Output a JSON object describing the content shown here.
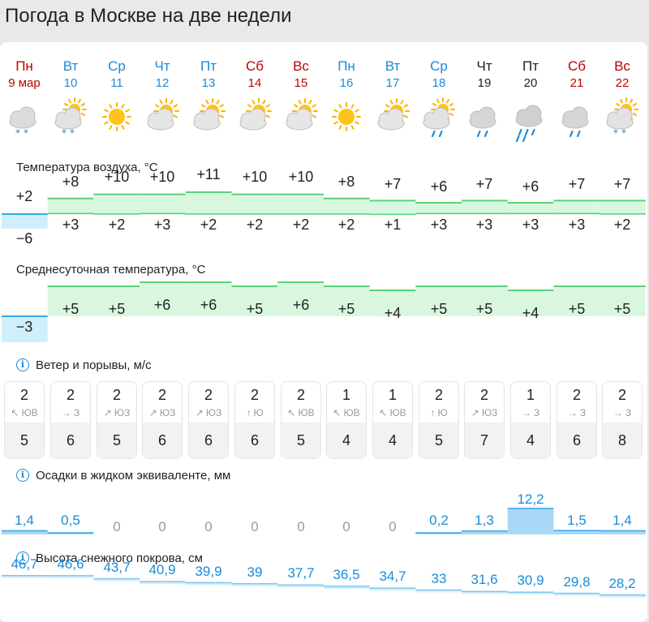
{
  "title": "Погода в Москве на две недели",
  "days": [
    {
      "dow": "Пн",
      "date": "9 мар",
      "color": "red",
      "icon": "snow-cloud-icon"
    },
    {
      "dow": "Вт",
      "date": "10",
      "color": "blue",
      "icon": "partly-cloudy-snow-icon"
    },
    {
      "dow": "Ср",
      "date": "11",
      "color": "blue",
      "icon": "sun-icon"
    },
    {
      "dow": "Чт",
      "date": "12",
      "color": "blue",
      "icon": "partly-cloudy-icon"
    },
    {
      "dow": "Пт",
      "date": "13",
      "color": "blue",
      "icon": "partly-cloudy-icon"
    },
    {
      "dow": "Сб",
      "date": "14",
      "color": "red",
      "icon": "partly-cloudy-icon"
    },
    {
      "dow": "Вс",
      "date": "15",
      "color": "red",
      "icon": "partly-cloudy-icon"
    },
    {
      "dow": "Пн",
      "date": "16",
      "color": "blue",
      "icon": "sun-icon"
    },
    {
      "dow": "Вт",
      "date": "17",
      "color": "blue",
      "icon": "partly-cloudy-icon"
    },
    {
      "dow": "Ср",
      "date": "18",
      "color": "blue",
      "icon": "partly-cloudy-rain-icon"
    },
    {
      "dow": "Чт",
      "date": "19",
      "color": "black",
      "icon": "rain-cloud-icon"
    },
    {
      "dow": "Пт",
      "date": "20",
      "color": "black",
      "icon": "heavy-rain-cloud-icon"
    },
    {
      "dow": "Сб",
      "date": "21",
      "color": "red",
      "icon": "rain-cloud-icon"
    },
    {
      "dow": "Вс",
      "date": "22",
      "color": "red",
      "icon": "partly-cloudy-snow-icon"
    }
  ],
  "temperature": {
    "title": "Температура воздуха, °C",
    "max": [
      "+2",
      "+8",
      "+10",
      "+10",
      "+11",
      "+10",
      "+10",
      "+8",
      "+7",
      "+6",
      "+7",
      "+6",
      "+7",
      "+7"
    ],
    "min": [
      "−6",
      "+3",
      "+2",
      "+3",
      "+2",
      "+2",
      "+2",
      "+2",
      "+1",
      "+3",
      "+3",
      "+3",
      "+3",
      "+2"
    ],
    "max_values": [
      2,
      8,
      10,
      10,
      11,
      10,
      10,
      8,
      7,
      6,
      7,
      6,
      7,
      7
    ],
    "min_values": [
      -6,
      3,
      2,
      3,
      2,
      2,
      2,
      2,
      1,
      3,
      3,
      3,
      3,
      2
    ]
  },
  "average": {
    "title": "Среднесуточная температура, °C",
    "labels": [
      "−3",
      "+5",
      "+5",
      "+6",
      "+6",
      "+5",
      "+6",
      "+5",
      "+4",
      "+5",
      "+5",
      "+4",
      "+5",
      "+5"
    ],
    "values": [
      -3,
      5,
      5,
      6,
      6,
      5,
      6,
      5,
      4,
      5,
      5,
      4,
      5,
      5
    ]
  },
  "wind": {
    "title": "Ветер и порывы, м/с",
    "info_icon": "info-icon",
    "speed": [
      "2",
      "2",
      "2",
      "2",
      "2",
      "2",
      "2",
      "1",
      "1",
      "2",
      "2",
      "1",
      "2",
      "2"
    ],
    "dir_arrow": [
      "↖",
      "→",
      "↗",
      "↗",
      "↗",
      "↑",
      "↖",
      "↖",
      "↖",
      "↑",
      "↗",
      "→",
      "→",
      "→"
    ],
    "dir": [
      "ЮВ",
      "З",
      "ЮЗ",
      "ЮЗ",
      "ЮЗ",
      "Ю",
      "ЮВ",
      "ЮВ",
      "ЮВ",
      "Ю",
      "ЮЗ",
      "З",
      "З",
      "З"
    ],
    "gust": [
      "5",
      "6",
      "5",
      "6",
      "6",
      "6",
      "5",
      "4",
      "4",
      "5",
      "7",
      "4",
      "6",
      "8"
    ]
  },
  "precip": {
    "title": "Осадки в жидком эквиваленте, мм",
    "labels": [
      "1,4",
      "0,5",
      "0",
      "0",
      "0",
      "0",
      "0",
      "0",
      "0",
      "0,2",
      "1,3",
      "12,2",
      "1,5",
      "1,4"
    ],
    "values": [
      1.4,
      0.5,
      0,
      0,
      0,
      0,
      0,
      0,
      0,
      0.2,
      1.3,
      12.2,
      1.5,
      1.4
    ]
  },
  "snow": {
    "title": "Высота снежного покрова, см",
    "labels": [
      "46,7",
      "46,6",
      "43,7",
      "40,9",
      "39,9",
      "39",
      "37,7",
      "36,5",
      "34,7",
      "33",
      "31,6",
      "30,9",
      "29,8",
      "28,2"
    ],
    "values": [
      46.7,
      46.6,
      43.7,
      40.9,
      39.9,
      39,
      37.7,
      36.5,
      34.7,
      33,
      31.6,
      30.9,
      29.8,
      28.2
    ]
  },
  "colors": {
    "warm_fill": "#d9f7df",
    "warm_line": "#5bd27a",
    "cold_fill": "#cfeffc",
    "cold_line": "#35a9e6",
    "precip_fill": "#a9d8f7",
    "precip_line": "#3aa4e8",
    "snow_line": "#7cc6f1",
    "blue_text": "#1a8bd8",
    "red_text": "#c00000"
  }
}
